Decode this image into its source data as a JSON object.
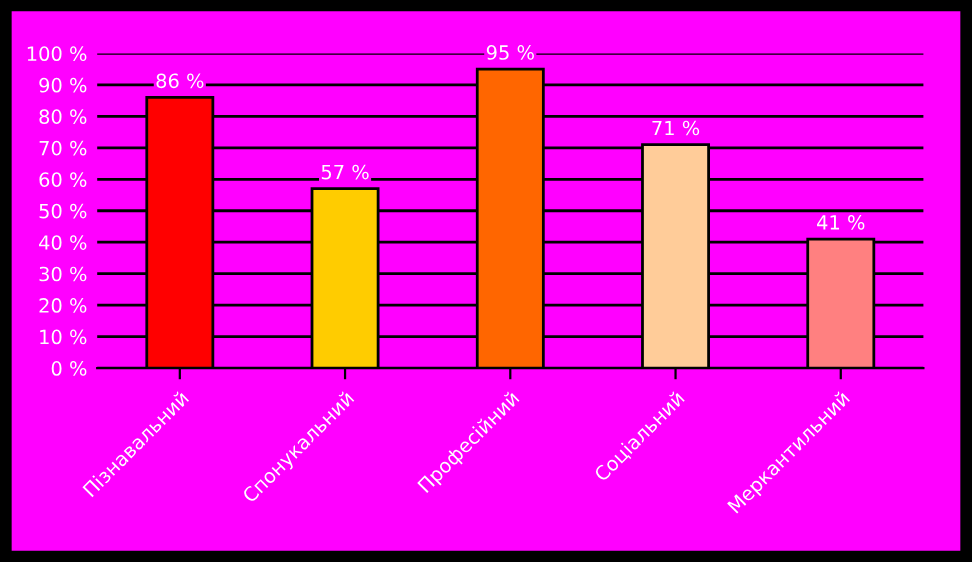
{
  "chart_data": {
    "type": "bar",
    "categories": [
      "Пізнавальний",
      "Спонукальний",
      "Професійний",
      "Соціальний",
      "Меркантильний"
    ],
    "values": [
      86,
      57,
      95,
      71,
      41
    ],
    "colors": [
      "#ff0000",
      "#ffcc00",
      "#ff6600",
      "#ffcc99",
      "#ff8080"
    ],
    "value_labels": [
      "86 %",
      "57 %",
      "95 %",
      "71 %",
      "41 %"
    ],
    "ylim": [
      0,
      100
    ],
    "yticks": [
      {
        "value": 0,
        "label": "0 %"
      },
      {
        "value": 10,
        "label": "10 %"
      },
      {
        "value": 20,
        "label": "20 %"
      },
      {
        "value": 30,
        "label": "30 %"
      },
      {
        "value": 40,
        "label": "40 %"
      },
      {
        "value": 50,
        "label": "50 %"
      },
      {
        "value": 60,
        "label": "60 %"
      },
      {
        "value": 70,
        "label": "70 %"
      },
      {
        "value": 80,
        "label": "80 %"
      },
      {
        "value": 90,
        "label": "90 %"
      },
      {
        "value": 100,
        "label": "100 %"
      }
    ],
    "grid": "y"
  }
}
